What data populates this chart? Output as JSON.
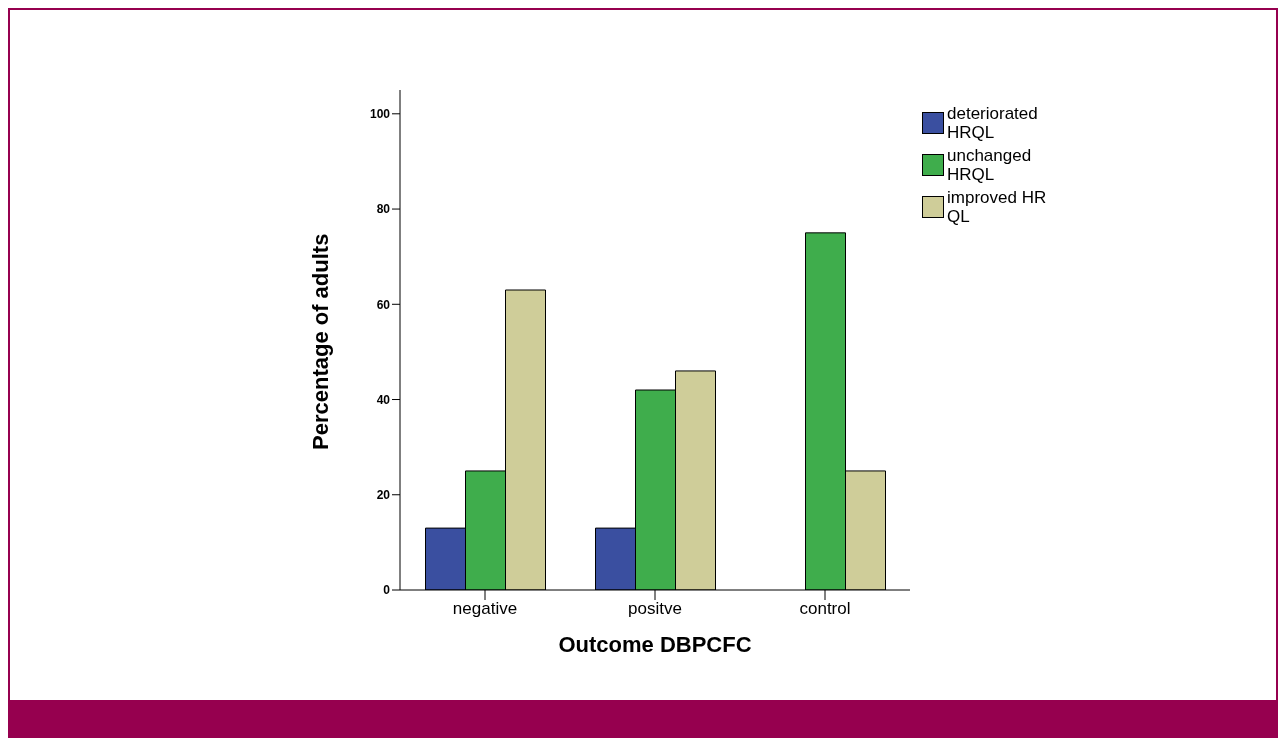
{
  "chart_data": {
    "type": "bar",
    "xlabel": "Outcome DBPCFC",
    "ylabel": "Percentage of adults",
    "categories": [
      "negative",
      "positve",
      "control"
    ],
    "series": [
      {
        "name": "deteriorated HRQL",
        "color": "#3a4fa0",
        "values": [
          13,
          13,
          0
        ]
      },
      {
        "name": "unchanged HRQL",
        "color": "#3fad4c",
        "values": [
          25,
          42,
          75
        ]
      },
      {
        "name": "improved HR QL",
        "color": "#cfcd99",
        "values": [
          63,
          46,
          25
        ]
      }
    ],
    "ylim": [
      0,
      105
    ],
    "yticks": [
      0,
      20,
      40,
      60,
      80,
      100
    ],
    "grid": false,
    "legend": "top right"
  }
}
